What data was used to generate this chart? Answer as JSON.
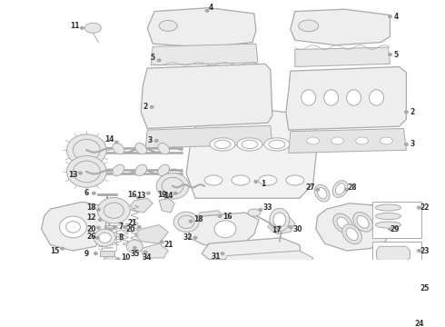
{
  "bg_color": "#ffffff",
  "lc": "#aaaaaa",
  "lc_dark": "#666666",
  "fc": "#f0f0f0",
  "fc2": "#e8e8e8",
  "label_color": "#333333",
  "figsize": [
    4.9,
    3.6
  ],
  "dpi": 100
}
